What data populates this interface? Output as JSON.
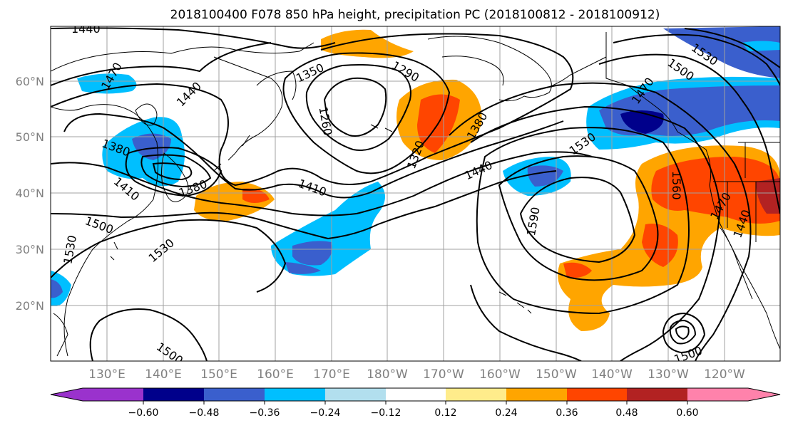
{
  "title": "2018100400 F078 850 hPa height, precipitation PC (2018100812 - 2018100912)",
  "lat_labels": [
    "60°N",
    "50°N",
    "40°N",
    "30°N",
    "20°N"
  ],
  "lon_labels": [
    "130°E",
    "140°E",
    "150°E",
    "160°E",
    "170°E",
    "180°W",
    "170°W",
    "160°W",
    "150°W",
    "140°W",
    "130°W",
    "120°W"
  ],
  "colorbar": {
    "ticks": [
      "−0.60",
      "−0.48",
      "−0.36",
      "−0.24",
      "−0.12",
      "0.12",
      "0.24",
      "0.36",
      "0.48",
      "0.60"
    ],
    "colors": [
      "#9a32cd",
      "#00008b",
      "#3a5fcd",
      "#00bfff",
      "#b2dfee",
      "#ffffff",
      "#ffec8b",
      "#ffa500",
      "#ff4500",
      "#b22222",
      "#ff82ab"
    ]
  },
  "contour_labels": [
    "1440",
    "1470",
    "1440",
    "1350",
    "1290",
    "1260",
    "1380",
    "1320",
    "1440",
    "1530",
    "1530",
    "1500",
    "1470",
    "1380",
    "1410",
    "1380",
    "1500",
    "1410",
    "1530",
    "1530",
    "1590",
    "1560",
    "1470",
    "1440",
    "1500",
    "1500"
  ]
}
